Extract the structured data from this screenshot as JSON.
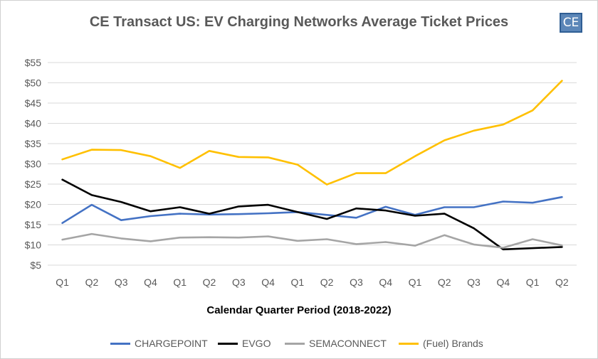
{
  "chart_data": {
    "type": "line",
    "title": "CE Transact US: EV Charging Networks Average Ticket Prices",
    "logo_text": "CE",
    "xlabel": "Calendar Quarter Period (2018-2022)",
    "ylabel": "",
    "categories": [
      "Q1",
      "Q2",
      "Q3",
      "Q4",
      "Q1",
      "Q2",
      "Q3",
      "Q4",
      "Q1",
      "Q2",
      "Q3",
      "Q4",
      "Q1",
      "Q2",
      "Q3",
      "Q4",
      "Q1",
      "Q2"
    ],
    "ylim": [
      5,
      55
    ],
    "yticks": [
      "$5",
      "$10",
      "$15",
      "$20",
      "$25",
      "$30",
      "$35",
      "$40",
      "$45",
      "$50",
      "$55"
    ],
    "ytick_values": [
      5,
      10,
      15,
      20,
      25,
      30,
      35,
      40,
      45,
      50,
      55
    ],
    "grid": true,
    "legend_position": "bottom",
    "series": [
      {
        "name": "CHARGEPOINT",
        "color": "#4472c4",
        "values": [
          15.4,
          19.9,
          16.1,
          17.1,
          17.7,
          17.5,
          17.6,
          17.8,
          18.1,
          17.4,
          16.7,
          19.4,
          17.4,
          19.3,
          19.3,
          20.7,
          20.4,
          21.8
        ]
      },
      {
        "name": "EVGO",
        "color": "#000000",
        "values": [
          26.1,
          22.3,
          20.6,
          18.3,
          19.3,
          17.7,
          19.5,
          19.9,
          18.1,
          16.4,
          19.0,
          18.5,
          17.2,
          17.7,
          14.1,
          8.9,
          9.2,
          9.5
        ]
      },
      {
        "name": "SEMACONNECT",
        "color": "#a5a5a5",
        "values": [
          11.3,
          12.7,
          11.6,
          10.9,
          11.8,
          11.9,
          11.8,
          12.1,
          11.0,
          11.4,
          10.2,
          10.7,
          9.8,
          12.4,
          10.1,
          9.3,
          11.4,
          9.9
        ]
      },
      {
        "name": "(Fuel) Brands",
        "color": "#ffc000",
        "values": [
          31.1,
          33.5,
          33.4,
          31.9,
          29.0,
          33.2,
          31.7,
          31.6,
          29.8,
          24.9,
          27.7,
          27.7,
          31.9,
          35.8,
          38.2,
          39.7,
          43.2,
          50.5
        ]
      }
    ]
  }
}
